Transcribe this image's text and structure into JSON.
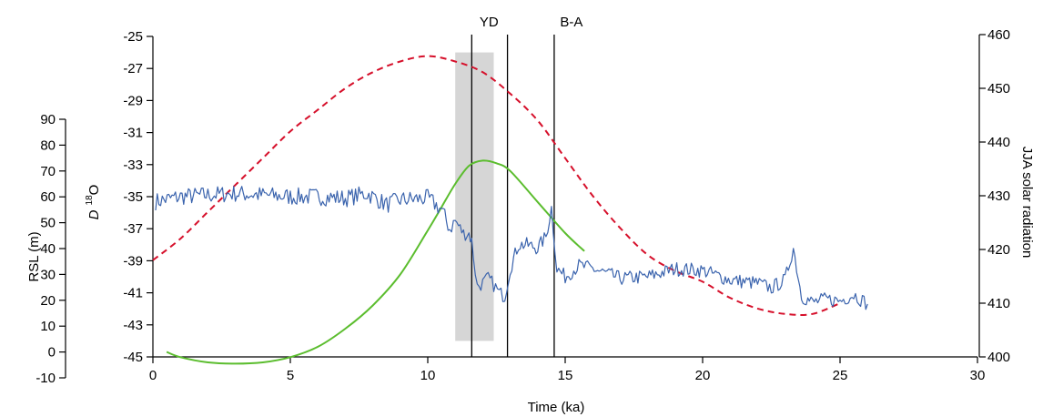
{
  "chart_data": {
    "type": "line",
    "xlabel": "Time (ka)",
    "x_ticks": [
      0,
      5,
      10,
      15,
      20,
      25,
      30
    ],
    "xlim": [
      0,
      30
    ],
    "axes": {
      "delta18O": {
        "label_italic": "D",
        "label_sup": "18",
        "label_tail": "O",
        "ticks": [
          -25,
          -27,
          -29,
          -31,
          -33,
          -35,
          -37,
          -39,
          -41,
          -43,
          -45
        ],
        "ylim": [
          -45,
          -25
        ]
      },
      "rsl": {
        "label": "RSL (m)",
        "ticks": [
          90,
          80,
          70,
          60,
          50,
          40,
          30,
          20,
          10,
          0,
          -10
        ],
        "ylim": [
          -10,
          90
        ]
      },
      "solar": {
        "label": "JJA solar radiation",
        "ticks": [
          460,
          450,
          440,
          430,
          420,
          410,
          400
        ],
        "ylim": [
          400,
          460
        ]
      }
    },
    "shaded_band": {
      "x": [
        11.0,
        12.4
      ],
      "y_delta18O": [
        -44.0,
        -26.0
      ]
    },
    "events": [
      {
        "label": "YD",
        "x": 11.6,
        "lines": [
          11.6,
          12.9
        ]
      },
      {
        "label": "B-A",
        "x": 14.6,
        "lines": [
          14.6
        ]
      }
    ],
    "series": [
      {
        "key": "solar",
        "axis": "solar",
        "color": "#d6102b",
        "style": "dashed",
        "x": [
          0,
          1,
          2,
          3,
          4,
          5,
          6,
          7,
          8,
          9,
          10,
          11,
          12,
          13,
          14,
          15,
          16,
          17,
          18,
          19,
          20,
          21,
          22,
          23,
          24,
          25
        ],
        "y": [
          418,
          422,
          427,
          432,
          437,
          442,
          446,
          450,
          453,
          455,
          456,
          455,
          453,
          449,
          444,
          437,
          430,
          424,
          419,
          416,
          414,
          411,
          409,
          408,
          408,
          410
        ]
      },
      {
        "key": "rsl",
        "axis": "rsl",
        "color": "#5bbd2e",
        "style": "solid",
        "x": [
          0.5,
          1,
          2,
          3,
          4,
          5,
          6,
          7,
          8,
          9,
          10,
          10.5,
          11,
          11.5,
          12,
          12.5,
          13,
          14,
          15,
          15.7
        ],
        "y": [
          0,
          -2,
          -4,
          -4.5,
          -4,
          -2,
          2,
          9,
          18,
          30,
          47,
          56,
          65,
          72,
          74,
          73,
          70,
          58,
          46,
          39
        ]
      },
      {
        "key": "delta18O",
        "axis": "delta18O",
        "color": "#3a63ad",
        "style": "solid",
        "x": [
          0.1,
          1,
          2,
          3,
          4,
          5,
          6,
          7,
          7.8,
          8.5,
          9,
          10,
          10.5,
          10.8,
          11,
          11.3,
          11.5,
          11.6,
          11.8,
          12,
          12.2,
          12.4,
          12.6,
          12.8,
          13,
          13.3,
          13.6,
          14,
          14.3,
          14.5,
          14.7,
          15,
          15.5,
          16,
          17,
          18,
          19,
          20,
          21,
          22,
          22.5,
          23,
          23.3,
          23.6,
          24,
          24.5,
          25,
          25.5,
          26
        ],
        "y": [
          -35.3,
          -35.0,
          -34.9,
          -34.8,
          -34.9,
          -35.0,
          -35.0,
          -35.1,
          -34.8,
          -35.5,
          -35.2,
          -35.1,
          -35.8,
          -37.0,
          -36.5,
          -37.3,
          -37.3,
          -37.8,
          -40.6,
          -40.4,
          -40.1,
          -40.5,
          -41.0,
          -41.2,
          -39.5,
          -38.0,
          -38.0,
          -38.2,
          -37.5,
          -35.7,
          -39.5,
          -40.0,
          -39.3,
          -39.5,
          -40.1,
          -40.0,
          -39.5,
          -39.6,
          -40.2,
          -40.4,
          -40.7,
          -40.2,
          -38.2,
          -41.2,
          -41.6,
          -41.4,
          -41.5,
          -41.1,
          -41.7
        ]
      }
    ]
  }
}
